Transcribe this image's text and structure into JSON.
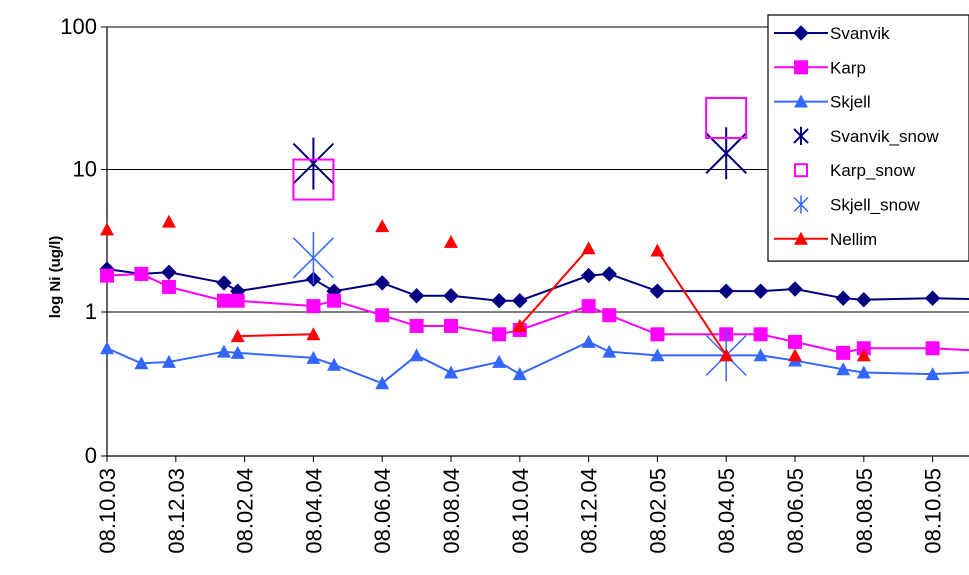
{
  "chart_data": {
    "type": "line",
    "title": "",
    "xlabel": "",
    "ylabel": "log Ni (ug/l)",
    "y_scale": "custom-log",
    "y_ticks": [
      {
        "value": 0,
        "label": "0"
      },
      {
        "value": 1,
        "label": "1"
      },
      {
        "value": 10,
        "label": "10"
      },
      {
        "value": 100,
        "label": "100"
      }
    ],
    "x_ticks": [
      "08.10.03",
      "08.12.03",
      "08.02.04",
      "08.04.04",
      "08.06.04",
      "08.08.04",
      "08.10.04",
      "08.12.04",
      "08.02.05",
      "08.04.05",
      "08.06.05",
      "08.08.05",
      "08.10.05"
    ],
    "grid": true,
    "legend_position": "right",
    "series": [
      {
        "name": "Svanvik",
        "color": "#000080",
        "marker": "diamond",
        "line": true,
        "points": [
          [
            0,
            2.0
          ],
          [
            0.5,
            1.85
          ],
          [
            0.9,
            1.9
          ],
          [
            1.7,
            1.6
          ],
          [
            1.9,
            1.4
          ],
          [
            3.0,
            1.7
          ],
          [
            3.3,
            1.4
          ],
          [
            4.0,
            1.6
          ],
          [
            4.5,
            1.3
          ],
          [
            5.0,
            1.3
          ],
          [
            5.7,
            1.2
          ],
          [
            6.0,
            1.2
          ],
          [
            7.0,
            1.8
          ],
          [
            7.3,
            1.85
          ],
          [
            8.0,
            1.4
          ],
          [
            9.0,
            1.4
          ],
          [
            9.5,
            1.4
          ],
          [
            10.0,
            1.45
          ],
          [
            10.7,
            1.25
          ],
          [
            11.0,
            1.22
          ],
          [
            12.0,
            1.25
          ],
          [
            13.0,
            1.22
          ]
        ]
      },
      {
        "name": "Karp",
        "color": "#FF00FF",
        "marker": "square",
        "line": true,
        "points": [
          [
            0,
            1.8
          ],
          [
            0.5,
            1.85
          ],
          [
            0.9,
            1.5
          ],
          [
            1.7,
            1.2
          ],
          [
            1.9,
            1.2
          ],
          [
            3.0,
            1.1
          ],
          [
            3.3,
            1.2
          ],
          [
            4.0,
            0.95
          ],
          [
            4.5,
            0.8
          ],
          [
            5.0,
            0.8
          ],
          [
            5.7,
            0.7
          ],
          [
            6.0,
            0.75
          ],
          [
            7.0,
            1.1
          ],
          [
            7.3,
            0.95
          ],
          [
            8.0,
            0.7
          ],
          [
            9.0,
            0.7
          ],
          [
            9.5,
            0.7
          ],
          [
            10.0,
            0.62
          ],
          [
            10.7,
            0.52
          ],
          [
            11.0,
            0.56
          ],
          [
            12.0,
            0.56
          ],
          [
            13.0,
            0.53
          ]
        ]
      },
      {
        "name": "Skjell",
        "color": "#3366FF",
        "marker": "triangle",
        "line": true,
        "points": [
          [
            0,
            0.56
          ],
          [
            0.5,
            0.44
          ],
          [
            0.9,
            0.45
          ],
          [
            1.7,
            0.53
          ],
          [
            1.9,
            0.52
          ],
          [
            3.0,
            0.48
          ],
          [
            3.3,
            0.43
          ],
          [
            4.0,
            0.32
          ],
          [
            4.5,
            0.5
          ],
          [
            5.0,
            0.38
          ],
          [
            5.7,
            0.45
          ],
          [
            6.0,
            0.37
          ],
          [
            7.0,
            0.62
          ],
          [
            7.3,
            0.53
          ],
          [
            8.0,
            0.5
          ],
          [
            9.0,
            0.5
          ],
          [
            9.5,
            0.5
          ],
          [
            10.0,
            0.46
          ],
          [
            10.7,
            0.4
          ],
          [
            11.0,
            0.38
          ],
          [
            12.0,
            0.37
          ],
          [
            13.0,
            0.39
          ]
        ]
      },
      {
        "name": "Svanvik_snow",
        "color": "#000080",
        "marker": "star",
        "line": false,
        "points": [
          [
            3.0,
            11.0
          ],
          [
            9.0,
            13.0
          ]
        ]
      },
      {
        "name": "Karp_snow",
        "color": "#FF00FF",
        "marker": "open-square",
        "line": false,
        "points": [
          [
            3.0,
            8.5
          ],
          [
            9.0,
            23.0
          ]
        ]
      },
      {
        "name": "Skjell_snow",
        "color": "#3366FF",
        "marker": "asterisk",
        "line": false,
        "points": [
          [
            3.0,
            2.4
          ],
          [
            9.0,
            0.5
          ]
        ]
      },
      {
        "name": "Nellim",
        "color": "#FF0000",
        "marker": "triangle",
        "line": true,
        "points": [
          [
            0,
            3.8
          ],
          [
            0.9,
            4.3
          ],
          [
            1.9,
            0.68
          ],
          [
            3.0,
            0.7
          ],
          [
            4.0,
            4.0
          ],
          [
            5.0,
            3.1
          ],
          [
            6.0,
            0.8
          ],
          [
            7.0,
            2.8
          ],
          [
            8.0,
            2.7
          ],
          [
            9.0,
            0.5
          ],
          [
            10.0,
            0.5
          ],
          [
            11.0,
            0.5
          ]
        ],
        "segments": [
          [
            1.9,
            3.0
          ],
          [
            6.0,
            7.0
          ],
          [
            8.0,
            9.0
          ]
        ]
      }
    ]
  }
}
